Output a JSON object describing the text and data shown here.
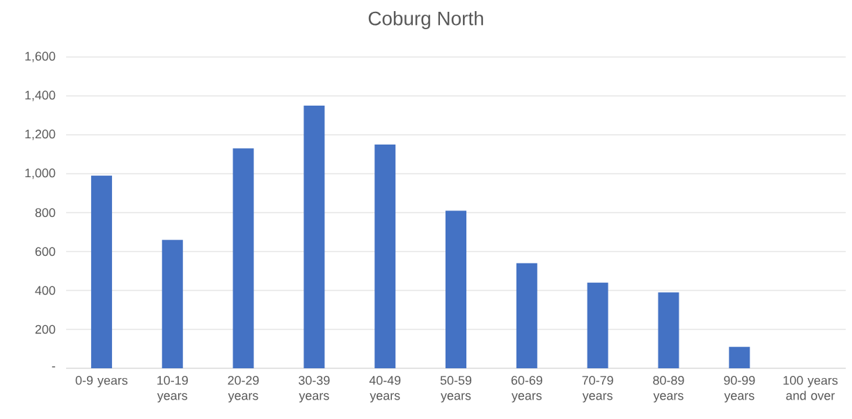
{
  "chart_data": {
    "type": "bar",
    "title": "Coburg North",
    "categories": [
      "0-9 years",
      "10-19 years",
      "20-29 years",
      "30-39 years",
      "40-49 years",
      "50-59 years",
      "60-69 years",
      "70-79 years",
      "80-89 years",
      "90-99 years",
      "100 years and over"
    ],
    "values": [
      990,
      660,
      1130,
      1350,
      1150,
      810,
      540,
      440,
      390,
      110,
      0
    ],
    "color": "#4472c4",
    "ylim": [
      0,
      1600
    ],
    "yticks": [
      {
        "value": 0,
        "label": "-"
      },
      {
        "value": 200,
        "label": "200"
      },
      {
        "value": 400,
        "label": "400"
      },
      {
        "value": 600,
        "label": "600"
      },
      {
        "value": 800,
        "label": "800"
      },
      {
        "value": 1000,
        "label": "1,000"
      },
      {
        "value": 1200,
        "label": "1,200"
      },
      {
        "value": 1400,
        "label": "1,400"
      },
      {
        "value": 1600,
        "label": "1,600"
      }
    ],
    "grid": "y"
  }
}
